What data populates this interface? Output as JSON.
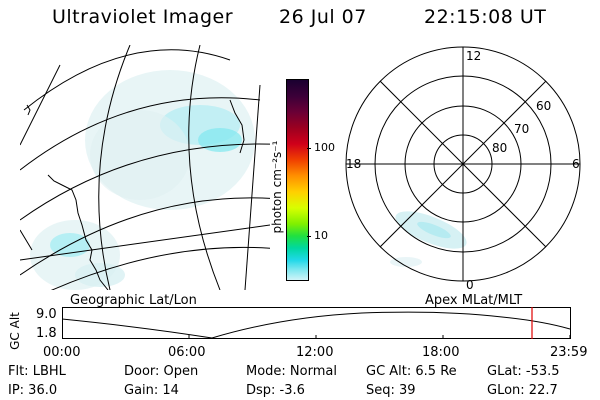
{
  "header": {
    "title": "Ultraviolet Imager",
    "date": "26 Jul 07",
    "time": "22:15:08 UT"
  },
  "colorbar": {
    "unit_label": "photon cm⁻²s⁻¹",
    "ticks": [
      "100",
      "10"
    ],
    "colors": [
      "#1a0030",
      "#3b0038",
      "#6a0036",
      "#9c0020",
      "#d0001a",
      "#f04000",
      "#ff9000",
      "#ffd000",
      "#d8ff00",
      "#80f000",
      "#20e040",
      "#00d8a0",
      "#20d8e8",
      "#80e8f0",
      "#d0f4f8"
    ]
  },
  "map_left": {
    "caption": "Geographic Lat/Lon"
  },
  "map_right": {
    "caption": "Apex MLat/MLT",
    "mlt_labels": [
      "12",
      "6",
      "0",
      "18"
    ],
    "mlat_labels": [
      "60",
      "70",
      "80"
    ]
  },
  "orbit": {
    "y_axis_label": "GC Alt",
    "y_ticks": [
      "9.0",
      "1.8"
    ],
    "x_ticks": [
      "00:00",
      "06:00",
      "12:00",
      "18:00",
      "23:59"
    ],
    "current_time_marker": "22:15"
  },
  "info": {
    "flt": "Flt: LBHL",
    "door": "Door: Open",
    "mode": "Mode: Normal",
    "gc_alt": "GC Alt: 6.5 Re",
    "glat": "GLat:  -53.5",
    "ip": "IP: 36.0",
    "gain": "Gain: 14",
    "dsp": "Dsp:    -3.6",
    "seq": "Seq: 39",
    "glon": "GLon:   22.7"
  }
}
